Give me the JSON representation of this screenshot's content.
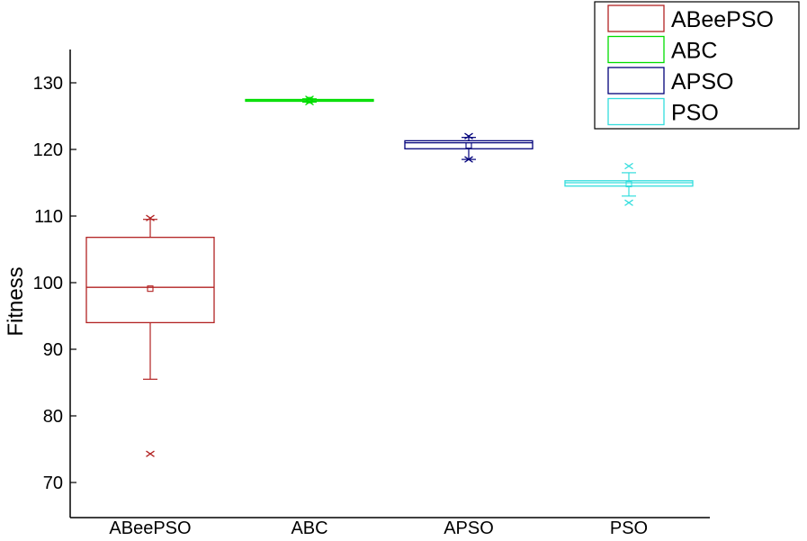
{
  "chart_data": {
    "type": "box",
    "ylabel": "Fitness",
    "xlabel": "",
    "ylim": [
      65,
      135
    ],
    "yticks": [
      70,
      80,
      90,
      100,
      110,
      120,
      130
    ],
    "categories": [
      "ABeePSO",
      "ABC",
      "APSO",
      "PSO"
    ],
    "grid": false,
    "legend_position": "top-right",
    "series": [
      {
        "name": "ABeePSO",
        "color": "#b22222",
        "whisker_low": 85.5,
        "q1": 94,
        "median": 99.3,
        "q3": 106.8,
        "whisker_high": 109.5,
        "mean": 99.1,
        "outliers": [
          109.7,
          74.3
        ]
      },
      {
        "name": "ABC",
        "color": "#00dd00",
        "whisker_low": 127.1,
        "q1": 127.3,
        "median": 127.4,
        "q3": 127.5,
        "whisker_high": 127.6,
        "mean": 127.4,
        "outliers": [
          127.1,
          127.6
        ]
      },
      {
        "name": "APSO",
        "color": "#00007a",
        "whisker_low": 118.5,
        "q1": 120.1,
        "median": 121.0,
        "q3": 121.3,
        "whisker_high": 121.8,
        "mean": 120.6,
        "outliers": [
          118.5,
          122.0
        ]
      },
      {
        "name": "PSO",
        "color": "#33dddd",
        "whisker_low": 113.0,
        "q1": 114.5,
        "median": 115.0,
        "q3": 115.3,
        "whisker_high": 116.5,
        "mean": 114.8,
        "outliers": [
          112.0,
          117.5
        ]
      }
    ]
  }
}
